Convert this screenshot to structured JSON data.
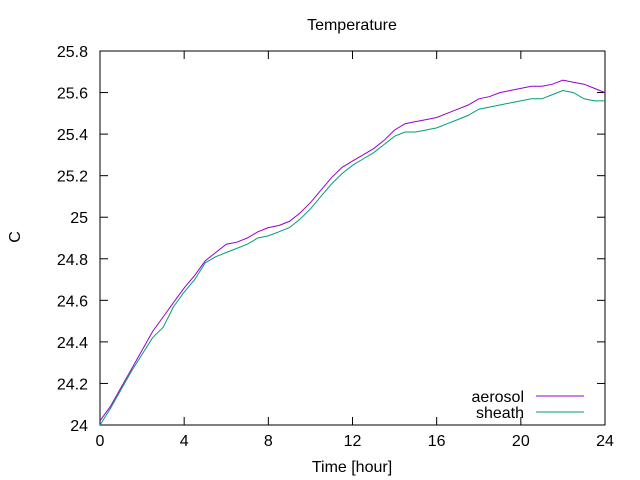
{
  "chart_data": {
    "type": "line",
    "title": "Temperature",
    "xlabel": "Time [hour]",
    "ylabel": "C",
    "xlim": [
      0,
      24
    ],
    "ylim": [
      24,
      25.8
    ],
    "xticks": [
      0,
      4,
      8,
      12,
      16,
      20,
      24
    ],
    "xtick_labels": [
      "0",
      "4",
      "8",
      "12",
      "16",
      "20",
      "24"
    ],
    "yticks": [
      24,
      24.2,
      24.4,
      24.6,
      24.8,
      25,
      25.2,
      25.4,
      25.6,
      25.8
    ],
    "ytick_labels": [
      "24",
      "24.2",
      "24.4",
      "24.6",
      "24.8",
      "25",
      "25.2",
      "25.4",
      "25.6",
      "25.8"
    ],
    "grid": false,
    "legend_position": "bottom-right",
    "series": [
      {
        "name": "aerosol",
        "color": "#9400d3",
        "x": [
          0,
          0.5,
          1,
          1.5,
          2,
          2.5,
          3,
          3.5,
          4,
          4.5,
          5,
          5.5,
          6,
          6.5,
          7,
          7.5,
          8,
          8.5,
          9,
          9.5,
          10,
          10.5,
          11,
          11.5,
          12,
          12.5,
          13,
          13.5,
          14,
          14.5,
          15,
          15.5,
          16,
          16.5,
          17,
          17.5,
          18,
          18.5,
          19,
          19.5,
          20,
          20.5,
          21,
          21.5,
          22,
          22.5,
          23,
          23.5,
          24
        ],
        "y": [
          24.02,
          24.09,
          24.18,
          24.27,
          24.36,
          24.45,
          24.52,
          24.59,
          24.66,
          24.72,
          24.79,
          24.83,
          24.87,
          24.88,
          24.9,
          24.93,
          24.95,
          24.96,
          24.98,
          25.02,
          25.07,
          25.13,
          25.19,
          25.24,
          25.27,
          25.3,
          25.33,
          25.37,
          25.42,
          25.45,
          25.46,
          25.47,
          25.48,
          25.5,
          25.52,
          25.54,
          25.57,
          25.58,
          25.6,
          25.61,
          25.62,
          25.63,
          25.63,
          25.64,
          25.66,
          25.65,
          25.64,
          25.62,
          25.6
        ]
      },
      {
        "name": "sheath",
        "color": "#009e73",
        "x": [
          0,
          0.5,
          1,
          1.5,
          2,
          2.5,
          3,
          3.5,
          4,
          4.5,
          5,
          5.5,
          6,
          6.5,
          7,
          7.5,
          8,
          8.5,
          9,
          9.5,
          10,
          10.5,
          11,
          11.5,
          12,
          12.5,
          13,
          13.5,
          14,
          14.5,
          15,
          15.5,
          16,
          16.5,
          17,
          17.5,
          18,
          18.5,
          19,
          19.5,
          20,
          20.5,
          21,
          21.5,
          22,
          22.5,
          23,
          23.5,
          24
        ],
        "y": [
          24.0,
          24.08,
          24.17,
          24.26,
          24.34,
          24.42,
          24.47,
          24.57,
          24.64,
          24.7,
          24.78,
          24.81,
          24.83,
          24.85,
          24.87,
          24.9,
          24.91,
          24.93,
          24.95,
          24.99,
          25.04,
          25.1,
          25.16,
          25.21,
          25.25,
          25.28,
          25.31,
          25.35,
          25.39,
          25.41,
          25.41,
          25.42,
          25.43,
          25.45,
          25.47,
          25.49,
          25.52,
          25.53,
          25.54,
          25.55,
          25.56,
          25.57,
          25.57,
          25.59,
          25.61,
          25.6,
          25.57,
          25.56,
          25.56
        ]
      }
    ]
  }
}
